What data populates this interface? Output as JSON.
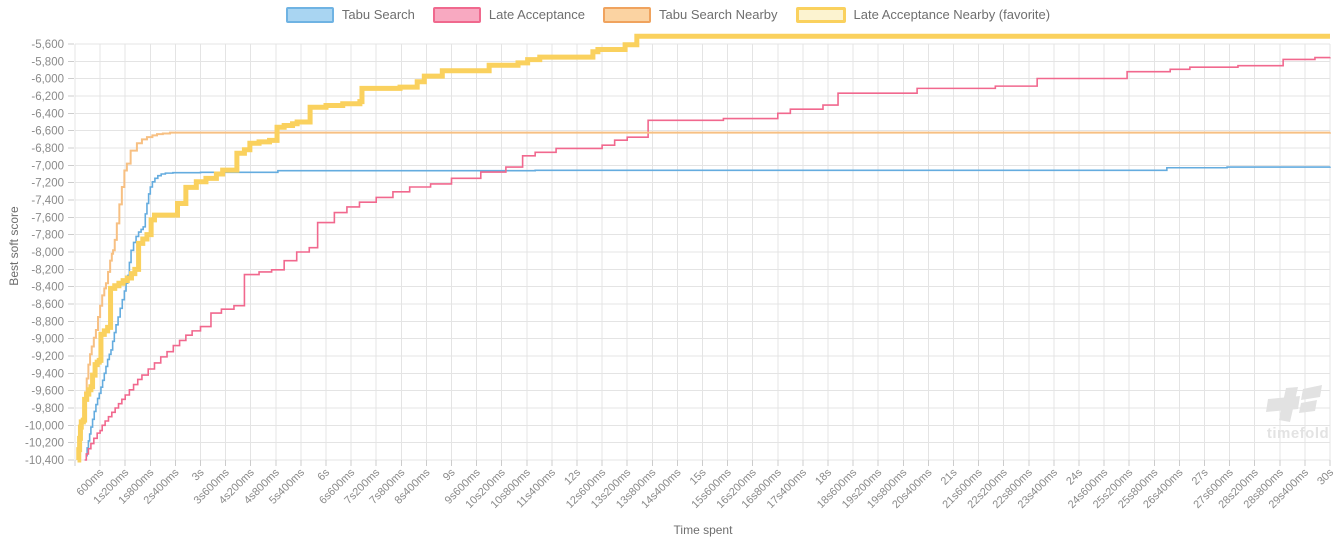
{
  "legend": {
    "items": [
      {
        "id": "tabu-search",
        "label": "Tabu Search",
        "fill": "#A9D5F2",
        "border": "#6FB3E3",
        "thick": false
      },
      {
        "id": "late-acceptance",
        "label": "Late Acceptance",
        "fill": "#F8A9C1",
        "border": "#F0698E",
        "thick": false
      },
      {
        "id": "tabu-search-nearby",
        "label": "Tabu Search Nearby",
        "fill": "#FBD3A2",
        "border": "#F0A35E",
        "thick": false
      },
      {
        "id": "late-acceptance-nearby",
        "label": "Late Acceptance Nearby (favorite)",
        "fill": "#FCF3D0",
        "border": "#FAD15E",
        "thick": true
      }
    ]
  },
  "axes": {
    "x_title": "Time spent",
    "y_title": "Best soft score",
    "x_tick_labels": [
      "600ms",
      "1s200ms",
      "1s800ms",
      "2s400ms",
      "3s",
      "3s600ms",
      "4s200ms",
      "4s800ms",
      "5s400ms",
      "6s",
      "6s600ms",
      "7s200ms",
      "7s800ms",
      "8s400ms",
      "9s",
      "9s600ms",
      "10s200ms",
      "10s800ms",
      "11s400ms",
      "12s",
      "12s600ms",
      "13s200ms",
      "13s800ms",
      "14s400ms",
      "15s",
      "15s600ms",
      "16s200ms",
      "16s800ms",
      "17s400ms",
      "18s",
      "18s600ms",
      "19s200ms",
      "19s800ms",
      "20s400ms",
      "21s",
      "21s600ms",
      "22s200ms",
      "22s800ms",
      "23s400ms",
      "24s",
      "24s600ms",
      "25s200ms",
      "25s800ms",
      "26s400ms",
      "27s",
      "27s600ms",
      "28s200ms",
      "28s800ms",
      "29s400ms",
      "30s"
    ],
    "y_tick_labels": [
      "-5,600",
      "-5,800",
      "-6,000",
      "-6,200",
      "-6,400",
      "-6,600",
      "-6,800",
      "-7,000",
      "-7,200",
      "-7,400",
      "-7,600",
      "-7,800",
      "-8,000",
      "-8,200",
      "-8,400",
      "-8,600",
      "-8,800",
      "-9,000",
      "-9,200",
      "-9,400",
      "-9,600",
      "-9,800",
      "-10,000",
      "-10,200",
      "-10,400"
    ]
  },
  "watermark": {
    "text": "timefold"
  },
  "chart_data": {
    "type": "line",
    "subtype": "step-after",
    "title": "",
    "xlabel": "Time spent",
    "ylabel": "Best soft score",
    "x_unit": "ms",
    "x_range_ms": [
      0,
      30000
    ],
    "x_tick_interval_ms": 600,
    "ylim": [
      -10400,
      -5510
    ],
    "y_tick_interval": 200,
    "grid": true,
    "legend_position": "top",
    "series": [
      {
        "name": "Tabu Search",
        "color": "#64ACDF",
        "width": 1.6,
        "points": [
          [
            260,
            -10350
          ],
          [
            290,
            -10260
          ],
          [
            320,
            -10180
          ],
          [
            350,
            -10100
          ],
          [
            380,
            -10020
          ],
          [
            420,
            -9930
          ],
          [
            460,
            -9840
          ],
          [
            500,
            -9760
          ],
          [
            540,
            -9690
          ],
          [
            580,
            -9630
          ],
          [
            620,
            -9560
          ],
          [
            660,
            -9480
          ],
          [
            700,
            -9400
          ],
          [
            740,
            -9320
          ],
          [
            780,
            -9240
          ],
          [
            820,
            -9180
          ],
          [
            860,
            -9130
          ],
          [
            900,
            -9030
          ],
          [
            940,
            -8930
          ],
          [
            980,
            -8840
          ],
          [
            1030,
            -8750
          ],
          [
            1080,
            -8650
          ],
          [
            1130,
            -8550
          ],
          [
            1180,
            -8450
          ],
          [
            1220,
            -8360
          ],
          [
            1260,
            -8270
          ],
          [
            1300,
            -8120
          ],
          [
            1340,
            -7980
          ],
          [
            1400,
            -7890
          ],
          [
            1460,
            -7820
          ],
          [
            1520,
            -7770
          ],
          [
            1580,
            -7740
          ],
          [
            1630,
            -7710
          ],
          [
            1680,
            -7560
          ],
          [
            1720,
            -7440
          ],
          [
            1760,
            -7330
          ],
          [
            1800,
            -7250
          ],
          [
            1850,
            -7190
          ],
          [
            1910,
            -7150
          ],
          [
            1980,
            -7120
          ],
          [
            2060,
            -7100
          ],
          [
            2160,
            -7090
          ],
          [
            2340,
            -7085
          ],
          [
            3000,
            -7080
          ],
          [
            4850,
            -7062
          ],
          [
            11000,
            -7058
          ],
          [
            26100,
            -7028
          ],
          [
            27540,
            -7020
          ],
          [
            30000,
            -7015
          ]
        ]
      },
      {
        "name": "Late Acceptance",
        "color": "#F1688E",
        "width": 1.6,
        "points": [
          [
            230,
            -10400
          ],
          [
            270,
            -10330
          ],
          [
            320,
            -10270
          ],
          [
            380,
            -10210
          ],
          [
            450,
            -10150
          ],
          [
            530,
            -10090
          ],
          [
            600,
            -10060
          ],
          [
            650,
            -10000
          ],
          [
            720,
            -9950
          ],
          [
            800,
            -9900
          ],
          [
            880,
            -9850
          ],
          [
            960,
            -9800
          ],
          [
            1040,
            -9750
          ],
          [
            1120,
            -9700
          ],
          [
            1200,
            -9650
          ],
          [
            1300,
            -9590
          ],
          [
            1400,
            -9530
          ],
          [
            1500,
            -9470
          ],
          [
            1600,
            -9420
          ],
          [
            1750,
            -9350
          ],
          [
            1900,
            -9280
          ],
          [
            2050,
            -9210
          ],
          [
            2200,
            -9150
          ],
          [
            2350,
            -9080
          ],
          [
            2500,
            -9020
          ],
          [
            2650,
            -8960
          ],
          [
            2800,
            -8910
          ],
          [
            3000,
            -8860
          ],
          [
            3250,
            -8705
          ],
          [
            3500,
            -8660
          ],
          [
            3800,
            -8620
          ],
          [
            4050,
            -8260
          ],
          [
            4400,
            -8230
          ],
          [
            4700,
            -8205
          ],
          [
            5000,
            -8100
          ],
          [
            5300,
            -8000
          ],
          [
            5600,
            -7950
          ],
          [
            5800,
            -7660
          ],
          [
            6200,
            -7545
          ],
          [
            6500,
            -7480
          ],
          [
            6800,
            -7425
          ],
          [
            7200,
            -7370
          ],
          [
            7600,
            -7305
          ],
          [
            8000,
            -7250
          ],
          [
            8500,
            -7215
          ],
          [
            9000,
            -7150
          ],
          [
            9700,
            -7078
          ],
          [
            10300,
            -7020
          ],
          [
            10700,
            -6890
          ],
          [
            11000,
            -6850
          ],
          [
            11500,
            -6805
          ],
          [
            12600,
            -6768
          ],
          [
            12900,
            -6710
          ],
          [
            13200,
            -6675
          ],
          [
            13700,
            -6480
          ],
          [
            15500,
            -6460
          ],
          [
            16800,
            -6400
          ],
          [
            17100,
            -6352
          ],
          [
            17880,
            -6305
          ],
          [
            18240,
            -6168
          ],
          [
            20130,
            -6112
          ],
          [
            22000,
            -6086
          ],
          [
            23000,
            -5998
          ],
          [
            25150,
            -5920
          ],
          [
            26180,
            -5892
          ],
          [
            26650,
            -5868
          ],
          [
            27800,
            -5850
          ],
          [
            28880,
            -5778
          ],
          [
            29640,
            -5757
          ],
          [
            30000,
            -5755
          ]
        ]
      },
      {
        "name": "Tabu Search Nearby",
        "color": "#F7C083",
        "width": 2,
        "points": [
          [
            70,
            -10400
          ],
          [
            100,
            -10240
          ],
          [
            130,
            -10080
          ],
          [
            160,
            -9930
          ],
          [
            200,
            -9780
          ],
          [
            240,
            -9620
          ],
          [
            280,
            -9460
          ],
          [
            320,
            -9300
          ],
          [
            360,
            -9180
          ],
          [
            400,
            -9090
          ],
          [
            450,
            -8990
          ],
          [
            500,
            -8900
          ],
          [
            550,
            -8750
          ],
          [
            600,
            -8620
          ],
          [
            650,
            -8500
          ],
          [
            700,
            -8420
          ],
          [
            740,
            -8360
          ],
          [
            790,
            -8230
          ],
          [
            840,
            -8100
          ],
          [
            880,
            -8020
          ],
          [
            910,
            -7980
          ],
          [
            950,
            -7860
          ],
          [
            1000,
            -7670
          ],
          [
            1060,
            -7450
          ],
          [
            1120,
            -7250
          ],
          [
            1180,
            -7060
          ],
          [
            1240,
            -6980
          ],
          [
            1330,
            -6830
          ],
          [
            1480,
            -6745
          ],
          [
            1600,
            -6700
          ],
          [
            1720,
            -6675
          ],
          [
            1850,
            -6655
          ],
          [
            1960,
            -6640
          ],
          [
            2100,
            -6632
          ],
          [
            2270,
            -6622
          ],
          [
            30000,
            -6620
          ]
        ]
      },
      {
        "name": "Late Acceptance Nearby (favorite)",
        "color": "#FAD15E",
        "width": 5,
        "favorite": true,
        "points": [
          [
            60,
            -10400
          ],
          [
            90,
            -10280
          ],
          [
            110,
            -10150
          ],
          [
            130,
            -10020
          ],
          [
            150,
            -9960
          ],
          [
            200,
            -9940
          ],
          [
            230,
            -9700
          ],
          [
            280,
            -9640
          ],
          [
            330,
            -9590
          ],
          [
            380,
            -9555
          ],
          [
            420,
            -9420
          ],
          [
            480,
            -9300
          ],
          [
            530,
            -9270
          ],
          [
            580,
            -9250
          ],
          [
            620,
            -8950
          ],
          [
            700,
            -8910
          ],
          [
            780,
            -8870
          ],
          [
            850,
            -8420
          ],
          [
            950,
            -8390
          ],
          [
            1050,
            -8360
          ],
          [
            1150,
            -8330
          ],
          [
            1250,
            -8300
          ],
          [
            1350,
            -8250
          ],
          [
            1430,
            -8200
          ],
          [
            1520,
            -7900
          ],
          [
            1620,
            -7850
          ],
          [
            1720,
            -7800
          ],
          [
            1820,
            -7630
          ],
          [
            1900,
            -7575
          ],
          [
            2450,
            -7440
          ],
          [
            2650,
            -7255
          ],
          [
            2900,
            -7190
          ],
          [
            3130,
            -7150
          ],
          [
            3380,
            -7100
          ],
          [
            3530,
            -7055
          ],
          [
            3870,
            -6860
          ],
          [
            4050,
            -6820
          ],
          [
            4180,
            -6745
          ],
          [
            4400,
            -6730
          ],
          [
            4650,
            -6712
          ],
          [
            4830,
            -6560
          ],
          [
            5000,
            -6540
          ],
          [
            5200,
            -6520
          ],
          [
            5310,
            -6500
          ],
          [
            5620,
            -6330
          ],
          [
            6000,
            -6310
          ],
          [
            6400,
            -6290
          ],
          [
            6810,
            -6265
          ],
          [
            6860,
            -6112
          ],
          [
            7770,
            -6098
          ],
          [
            8180,
            -6035
          ],
          [
            8350,
            -5970
          ],
          [
            8780,
            -5908
          ],
          [
            9900,
            -5845
          ],
          [
            10590,
            -5818
          ],
          [
            10820,
            -5780
          ],
          [
            11110,
            -5752
          ],
          [
            12380,
            -5690
          ],
          [
            12500,
            -5663
          ],
          [
            13150,
            -5608
          ],
          [
            13430,
            -5510
          ],
          [
            30000,
            -5510
          ]
        ]
      }
    ]
  }
}
